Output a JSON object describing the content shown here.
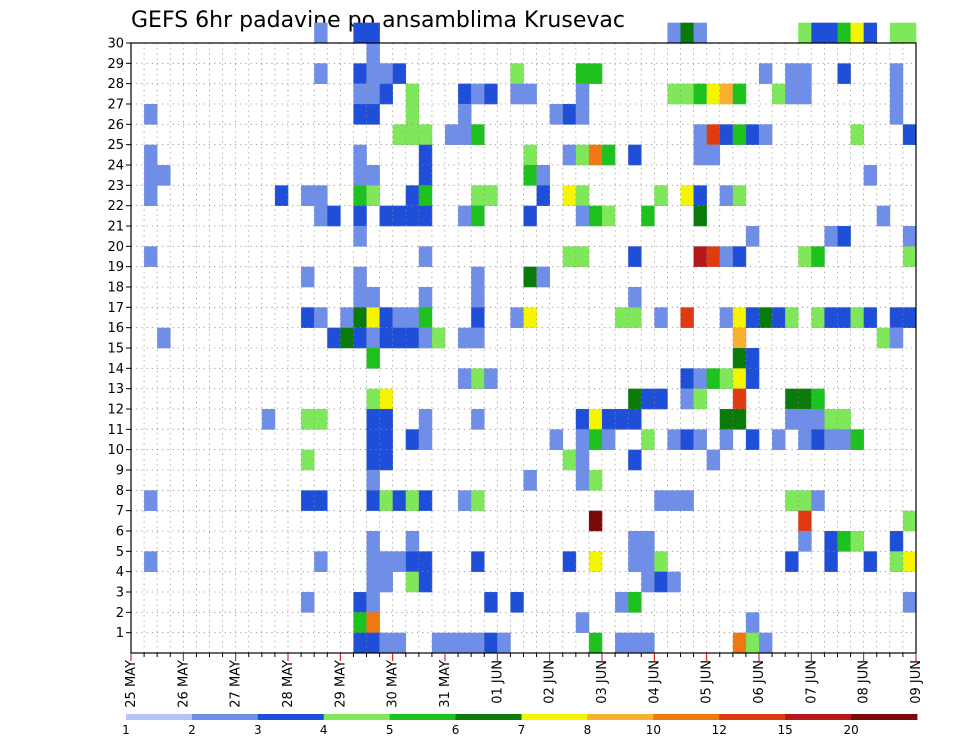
{
  "chart_data": {
    "type": "heatmap",
    "title": "GEFS 6hr padavine po ansamblima Krusevac",
    "y_ticks": [
      "1",
      "2",
      "3",
      "4",
      "5",
      "6",
      "7",
      "8",
      "9",
      "10",
      "11",
      "12",
      "13",
      "14",
      "15",
      "16",
      "17",
      "18",
      "19",
      "20",
      "21",
      "22",
      "23",
      "24",
      "25",
      "26",
      "27",
      "28",
      "29",
      "30"
    ],
    "ylim": [
      0,
      30
    ],
    "x_ticks": [
      "25 MAY",
      "26 MAY",
      "27 MAY",
      "28 MAY",
      "29 MAY",
      "30 MAY",
      "31 MAY",
      "01 JUN",
      "02 JUN",
      "03 JUN",
      "04 JUN",
      "05 JUN",
      "06 JUN",
      "07 JUN",
      "08 JUN",
      "09 JUN"
    ],
    "x_steps_per_day": 4,
    "x_steps_total": 60,
    "grid": true,
    "colorbar": {
      "levels": [
        "1",
        "2",
        "3",
        "4",
        "5",
        "6",
        "7",
        "8",
        "10",
        "12",
        "15",
        "20"
      ],
      "colors": [
        "#b4c5f5",
        "#6f8ee8",
        "#1f4fd8",
        "#7ee85a",
        "#1ec21e",
        "#0a7a0a",
        "#f5f500",
        "#f7b030",
        "#f07810",
        "#e03a10",
        "#b41818",
        "#7a0808"
      ]
    },
    "cells": [
      [
        30,
        14,
        1
      ],
      [
        30,
        17,
        2
      ],
      [
        30,
        18,
        2
      ],
      [
        30,
        41,
        1
      ],
      [
        30,
        42,
        5
      ],
      [
        30,
        43,
        1
      ],
      [
        30,
        51,
        3
      ],
      [
        30,
        52,
        2
      ],
      [
        30,
        53,
        2
      ],
      [
        30,
        54,
        4
      ],
      [
        30,
        55,
        6
      ],
      [
        30,
        56,
        2
      ],
      [
        30,
        58,
        3
      ],
      [
        30,
        59,
        3
      ],
      [
        29,
        18,
        1
      ],
      [
        28,
        14,
        1
      ],
      [
        28,
        17,
        2
      ],
      [
        28,
        18,
        1
      ],
      [
        28,
        19,
        1
      ],
      [
        28,
        20,
        2
      ],
      [
        28,
        29,
        3
      ],
      [
        28,
        34,
        4
      ],
      [
        28,
        35,
        4
      ],
      [
        28,
        48,
        1
      ],
      [
        28,
        50,
        1
      ],
      [
        28,
        51,
        1
      ],
      [
        28,
        54,
        2
      ],
      [
        28,
        58,
        1
      ],
      [
        27,
        17,
        1
      ],
      [
        27,
        18,
        1
      ],
      [
        27,
        19,
        2
      ],
      [
        27,
        21,
        3
      ],
      [
        27,
        25,
        2
      ],
      [
        27,
        26,
        1
      ],
      [
        27,
        27,
        2
      ],
      [
        27,
        29,
        1
      ],
      [
        27,
        30,
        1
      ],
      [
        27,
        34,
        1
      ],
      [
        27,
        41,
        3
      ],
      [
        27,
        42,
        3
      ],
      [
        27,
        43,
        4
      ],
      [
        27,
        44,
        6
      ],
      [
        27,
        45,
        7
      ],
      [
        27,
        46,
        4
      ],
      [
        27,
        49,
        3
      ],
      [
        27,
        50,
        1
      ],
      [
        27,
        51,
        1
      ],
      [
        27,
        58,
        1
      ],
      [
        26,
        1,
        1
      ],
      [
        26,
        17,
        2
      ],
      [
        26,
        18,
        2
      ],
      [
        26,
        21,
        3
      ],
      [
        26,
        25,
        1
      ],
      [
        26,
        32,
        1
      ],
      [
        26,
        33,
        2
      ],
      [
        26,
        34,
        1
      ],
      [
        26,
        58,
        1
      ],
      [
        25,
        20,
        3
      ],
      [
        25,
        21,
        3
      ],
      [
        25,
        22,
        3
      ],
      [
        25,
        24,
        1
      ],
      [
        25,
        25,
        1
      ],
      [
        25,
        26,
        4
      ],
      [
        25,
        43,
        1
      ],
      [
        25,
        44,
        9
      ],
      [
        25,
        45,
        2
      ],
      [
        25,
        46,
        4
      ],
      [
        25,
        47,
        2
      ],
      [
        25,
        48,
        1
      ],
      [
        25,
        55,
        3
      ],
      [
        25,
        59,
        2
      ],
      [
        24,
        1,
        1
      ],
      [
        24,
        17,
        1
      ],
      [
        24,
        22,
        2
      ],
      [
        24,
        30,
        3
      ],
      [
        24,
        33,
        1
      ],
      [
        24,
        34,
        3
      ],
      [
        24,
        35,
        8
      ],
      [
        24,
        36,
        4
      ],
      [
        24,
        38,
        2
      ],
      [
        24,
        43,
        1
      ],
      [
        24,
        44,
        1
      ],
      [
        23,
        1,
        1
      ],
      [
        23,
        2,
        1
      ],
      [
        23,
        17,
        1
      ],
      [
        23,
        18,
        1
      ],
      [
        23,
        22,
        2
      ],
      [
        23,
        30,
        4
      ],
      [
        23,
        31,
        1
      ],
      [
        23,
        56,
        1
      ],
      [
        22,
        1,
        1
      ],
      [
        22,
        11,
        2
      ],
      [
        22,
        13,
        1
      ],
      [
        22,
        14,
        1
      ],
      [
        22,
        17,
        4
      ],
      [
        22,
        18,
        3
      ],
      [
        22,
        21,
        2
      ],
      [
        22,
        22,
        4
      ],
      [
        22,
        26,
        3
      ],
      [
        22,
        27,
        3
      ],
      [
        22,
        31,
        2
      ],
      [
        22,
        33,
        6
      ],
      [
        22,
        34,
        3
      ],
      [
        22,
        40,
        3
      ],
      [
        22,
        42,
        6
      ],
      [
        22,
        43,
        2
      ],
      [
        22,
        45,
        1
      ],
      [
        22,
        46,
        3
      ],
      [
        21,
        14,
        1
      ],
      [
        21,
        15,
        2
      ],
      [
        21,
        17,
        2
      ],
      [
        21,
        19,
        2
      ],
      [
        21,
        20,
        2
      ],
      [
        21,
        21,
        2
      ],
      [
        21,
        22,
        2
      ],
      [
        21,
        25,
        1
      ],
      [
        21,
        26,
        4
      ],
      [
        21,
        30,
        2
      ],
      [
        21,
        34,
        1
      ],
      [
        21,
        35,
        4
      ],
      [
        21,
        36,
        3
      ],
      [
        21,
        39,
        4
      ],
      [
        21,
        43,
        5
      ],
      [
        21,
        57,
        1
      ],
      [
        20,
        17,
        1
      ],
      [
        20,
        47,
        1
      ],
      [
        20,
        53,
        1
      ],
      [
        20,
        54,
        2
      ],
      [
        20,
        59,
        1
      ],
      [
        19,
        1,
        1
      ],
      [
        19,
        22,
        1
      ],
      [
        19,
        33,
        3
      ],
      [
        19,
        34,
        3
      ],
      [
        19,
        38,
        2
      ],
      [
        19,
        43,
        10
      ],
      [
        19,
        44,
        9
      ],
      [
        19,
        45,
        1
      ],
      [
        19,
        46,
        2
      ],
      [
        19,
        51,
        3
      ],
      [
        19,
        52,
        4
      ],
      [
        19,
        59,
        3
      ],
      [
        18,
        13,
        1
      ],
      [
        18,
        17,
        1
      ],
      [
        18,
        26,
        1
      ],
      [
        18,
        30,
        5
      ],
      [
        18,
        31,
        1
      ],
      [
        17,
        17,
        1
      ],
      [
        17,
        18,
        1
      ],
      [
        17,
        22,
        1
      ],
      [
        17,
        26,
        1
      ],
      [
        17,
        38,
        1
      ],
      [
        16,
        13,
        2
      ],
      [
        16,
        14,
        1
      ],
      [
        16,
        16,
        1
      ],
      [
        16,
        17,
        5
      ],
      [
        16,
        18,
        6
      ],
      [
        16,
        19,
        2
      ],
      [
        16,
        20,
        1
      ],
      [
        16,
        21,
        1
      ],
      [
        16,
        22,
        4
      ],
      [
        16,
        26,
        2
      ],
      [
        16,
        29,
        1
      ],
      [
        16,
        30,
        6
      ],
      [
        16,
        37,
        3
      ],
      [
        16,
        38,
        3
      ],
      [
        16,
        40,
        1
      ],
      [
        16,
        42,
        9
      ],
      [
        16,
        45,
        1
      ],
      [
        16,
        46,
        6
      ],
      [
        16,
        47,
        2
      ],
      [
        16,
        48,
        5
      ],
      [
        16,
        49,
        2
      ],
      [
        16,
        50,
        3
      ],
      [
        16,
        52,
        3
      ],
      [
        16,
        53,
        2
      ],
      [
        16,
        54,
        2
      ],
      [
        16,
        55,
        3
      ],
      [
        16,
        56,
        2
      ],
      [
        16,
        58,
        2
      ],
      [
        16,
        59,
        2
      ],
      [
        15,
        2,
        1
      ],
      [
        15,
        15,
        2
      ],
      [
        15,
        16,
        5
      ],
      [
        15,
        17,
        2
      ],
      [
        15,
        18,
        1
      ],
      [
        15,
        19,
        2
      ],
      [
        15,
        20,
        2
      ],
      [
        15,
        21,
        2
      ],
      [
        15,
        22,
        1
      ],
      [
        15,
        23,
        3
      ],
      [
        15,
        25,
        1
      ],
      [
        15,
        26,
        1
      ],
      [
        15,
        46,
        7
      ],
      [
        15,
        57,
        3
      ],
      [
        15,
        58,
        1
      ],
      [
        14,
        18,
        4
      ],
      [
        14,
        46,
        5
      ],
      [
        14,
        47,
        2
      ],
      [
        13,
        25,
        1
      ],
      [
        13,
        26,
        3
      ],
      [
        13,
        27,
        1
      ],
      [
        13,
        42,
        2
      ],
      [
        13,
        43,
        1
      ],
      [
        13,
        44,
        4
      ],
      [
        13,
        45,
        3
      ],
      [
        13,
        46,
        6
      ],
      [
        13,
        47,
        2
      ],
      [
        12,
        18,
        3
      ],
      [
        12,
        19,
        6
      ],
      [
        12,
        38,
        5
      ],
      [
        12,
        39,
        2
      ],
      [
        12,
        40,
        2
      ],
      [
        12,
        42,
        1
      ],
      [
        12,
        43,
        3
      ],
      [
        12,
        46,
        9
      ],
      [
        12,
        50,
        5
      ],
      [
        12,
        51,
        5
      ],
      [
        12,
        52,
        4
      ],
      [
        11,
        10,
        1
      ],
      [
        11,
        13,
        3
      ],
      [
        11,
        14,
        3
      ],
      [
        11,
        18,
        2
      ],
      [
        11,
        19,
        2
      ],
      [
        11,
        22,
        1
      ],
      [
        11,
        26,
        1
      ],
      [
        11,
        34,
        2
      ],
      [
        11,
        35,
        6
      ],
      [
        11,
        36,
        2
      ],
      [
        11,
        37,
        2
      ],
      [
        11,
        38,
        2
      ],
      [
        11,
        45,
        5
      ],
      [
        11,
        46,
        5
      ],
      [
        11,
        50,
        1
      ],
      [
        11,
        51,
        1
      ],
      [
        11,
        52,
        1
      ],
      [
        11,
        53,
        3
      ],
      [
        11,
        54,
        3
      ],
      [
        10,
        18,
        2
      ],
      [
        10,
        19,
        2
      ],
      [
        10,
        21,
        2
      ],
      [
        10,
        22,
        1
      ],
      [
        10,
        32,
        1
      ],
      [
        10,
        34,
        1
      ],
      [
        10,
        35,
        4
      ],
      [
        10,
        36,
        1
      ],
      [
        10,
        39,
        3
      ],
      [
        10,
        41,
        1
      ],
      [
        10,
        42,
        2
      ],
      [
        10,
        43,
        1
      ],
      [
        10,
        45,
        1
      ],
      [
        10,
        47,
        2
      ],
      [
        10,
        49,
        1
      ],
      [
        10,
        51,
        1
      ],
      [
        10,
        52,
        2
      ],
      [
        10,
        53,
        1
      ],
      [
        10,
        54,
        1
      ],
      [
        10,
        55,
        4
      ],
      [
        9,
        13,
        3
      ],
      [
        9,
        18,
        2
      ],
      [
        9,
        19,
        2
      ],
      [
        9,
        33,
        3
      ],
      [
        9,
        34,
        1
      ],
      [
        9,
        38,
        2
      ],
      [
        9,
        44,
        1
      ],
      [
        8,
        18,
        1
      ],
      [
        8,
        30,
        1
      ],
      [
        8,
        34,
        1
      ],
      [
        8,
        35,
        3
      ],
      [
        7,
        1,
        1
      ],
      [
        7,
        13,
        2
      ],
      [
        7,
        14,
        2
      ],
      [
        7,
        18,
        2
      ],
      [
        7,
        19,
        3
      ],
      [
        7,
        20,
        2
      ],
      [
        7,
        21,
        3
      ],
      [
        7,
        22,
        2
      ],
      [
        7,
        25,
        1
      ],
      [
        7,
        26,
        3
      ],
      [
        7,
        40,
        1
      ],
      [
        7,
        41,
        1
      ],
      [
        7,
        42,
        1
      ],
      [
        7,
        50,
        3
      ],
      [
        7,
        51,
        3
      ],
      [
        7,
        52,
        1
      ],
      [
        6,
        35,
        11
      ],
      [
        6,
        51,
        9
      ],
      [
        6,
        59,
        3
      ],
      [
        5,
        18,
        1
      ],
      [
        5,
        21,
        1
      ],
      [
        5,
        38,
        1
      ],
      [
        5,
        39,
        1
      ],
      [
        5,
        51,
        1
      ],
      [
        5,
        53,
        2
      ],
      [
        5,
        54,
        4
      ],
      [
        5,
        55,
        3
      ],
      [
        5,
        58,
        2
      ],
      [
        4,
        1,
        1
      ],
      [
        4,
        14,
        1
      ],
      [
        4,
        18,
        1
      ],
      [
        4,
        19,
        1
      ],
      [
        4,
        20,
        1
      ],
      [
        4,
        21,
        2
      ],
      [
        4,
        22,
        2
      ],
      [
        4,
        26,
        2
      ],
      [
        4,
        33,
        2
      ],
      [
        4,
        35,
        6
      ],
      [
        4,
        38,
        1
      ],
      [
        4,
        39,
        1
      ],
      [
        4,
        40,
        3
      ],
      [
        4,
        50,
        2
      ],
      [
        4,
        53,
        2
      ],
      [
        4,
        56,
        2
      ],
      [
        4,
        58,
        3
      ],
      [
        4,
        59,
        6
      ],
      [
        3,
        18,
        1
      ],
      [
        3,
        19,
        1
      ],
      [
        3,
        21,
        3
      ],
      [
        3,
        22,
        2
      ],
      [
        3,
        39,
        1
      ],
      [
        3,
        40,
        2
      ],
      [
        3,
        41,
        1
      ],
      [
        2,
        13,
        1
      ],
      [
        2,
        17,
        2
      ],
      [
        2,
        18,
        1
      ],
      [
        2,
        27,
        2
      ],
      [
        2,
        29,
        2
      ],
      [
        2,
        37,
        1
      ],
      [
        2,
        38,
        4
      ],
      [
        2,
        59,
        1
      ],
      [
        1,
        17,
        4
      ],
      [
        1,
        18,
        8
      ],
      [
        1,
        34,
        1
      ],
      [
        1,
        47,
        1
      ],
      [
        0,
        17,
        2
      ],
      [
        0,
        18,
        2
      ],
      [
        0,
        19,
        1
      ],
      [
        0,
        20,
        1
      ],
      [
        0,
        23,
        1
      ],
      [
        0,
        24,
        1
      ],
      [
        0,
        25,
        1
      ],
      [
        0,
        26,
        1
      ],
      [
        0,
        27,
        2
      ],
      [
        0,
        28,
        1
      ],
      [
        0,
        35,
        4
      ],
      [
        0,
        37,
        1
      ],
      [
        0,
        38,
        1
      ],
      [
        0,
        39,
        1
      ],
      [
        0,
        46,
        8
      ],
      [
        0,
        47,
        3
      ],
      [
        0,
        48,
        1
      ]
    ]
  }
}
